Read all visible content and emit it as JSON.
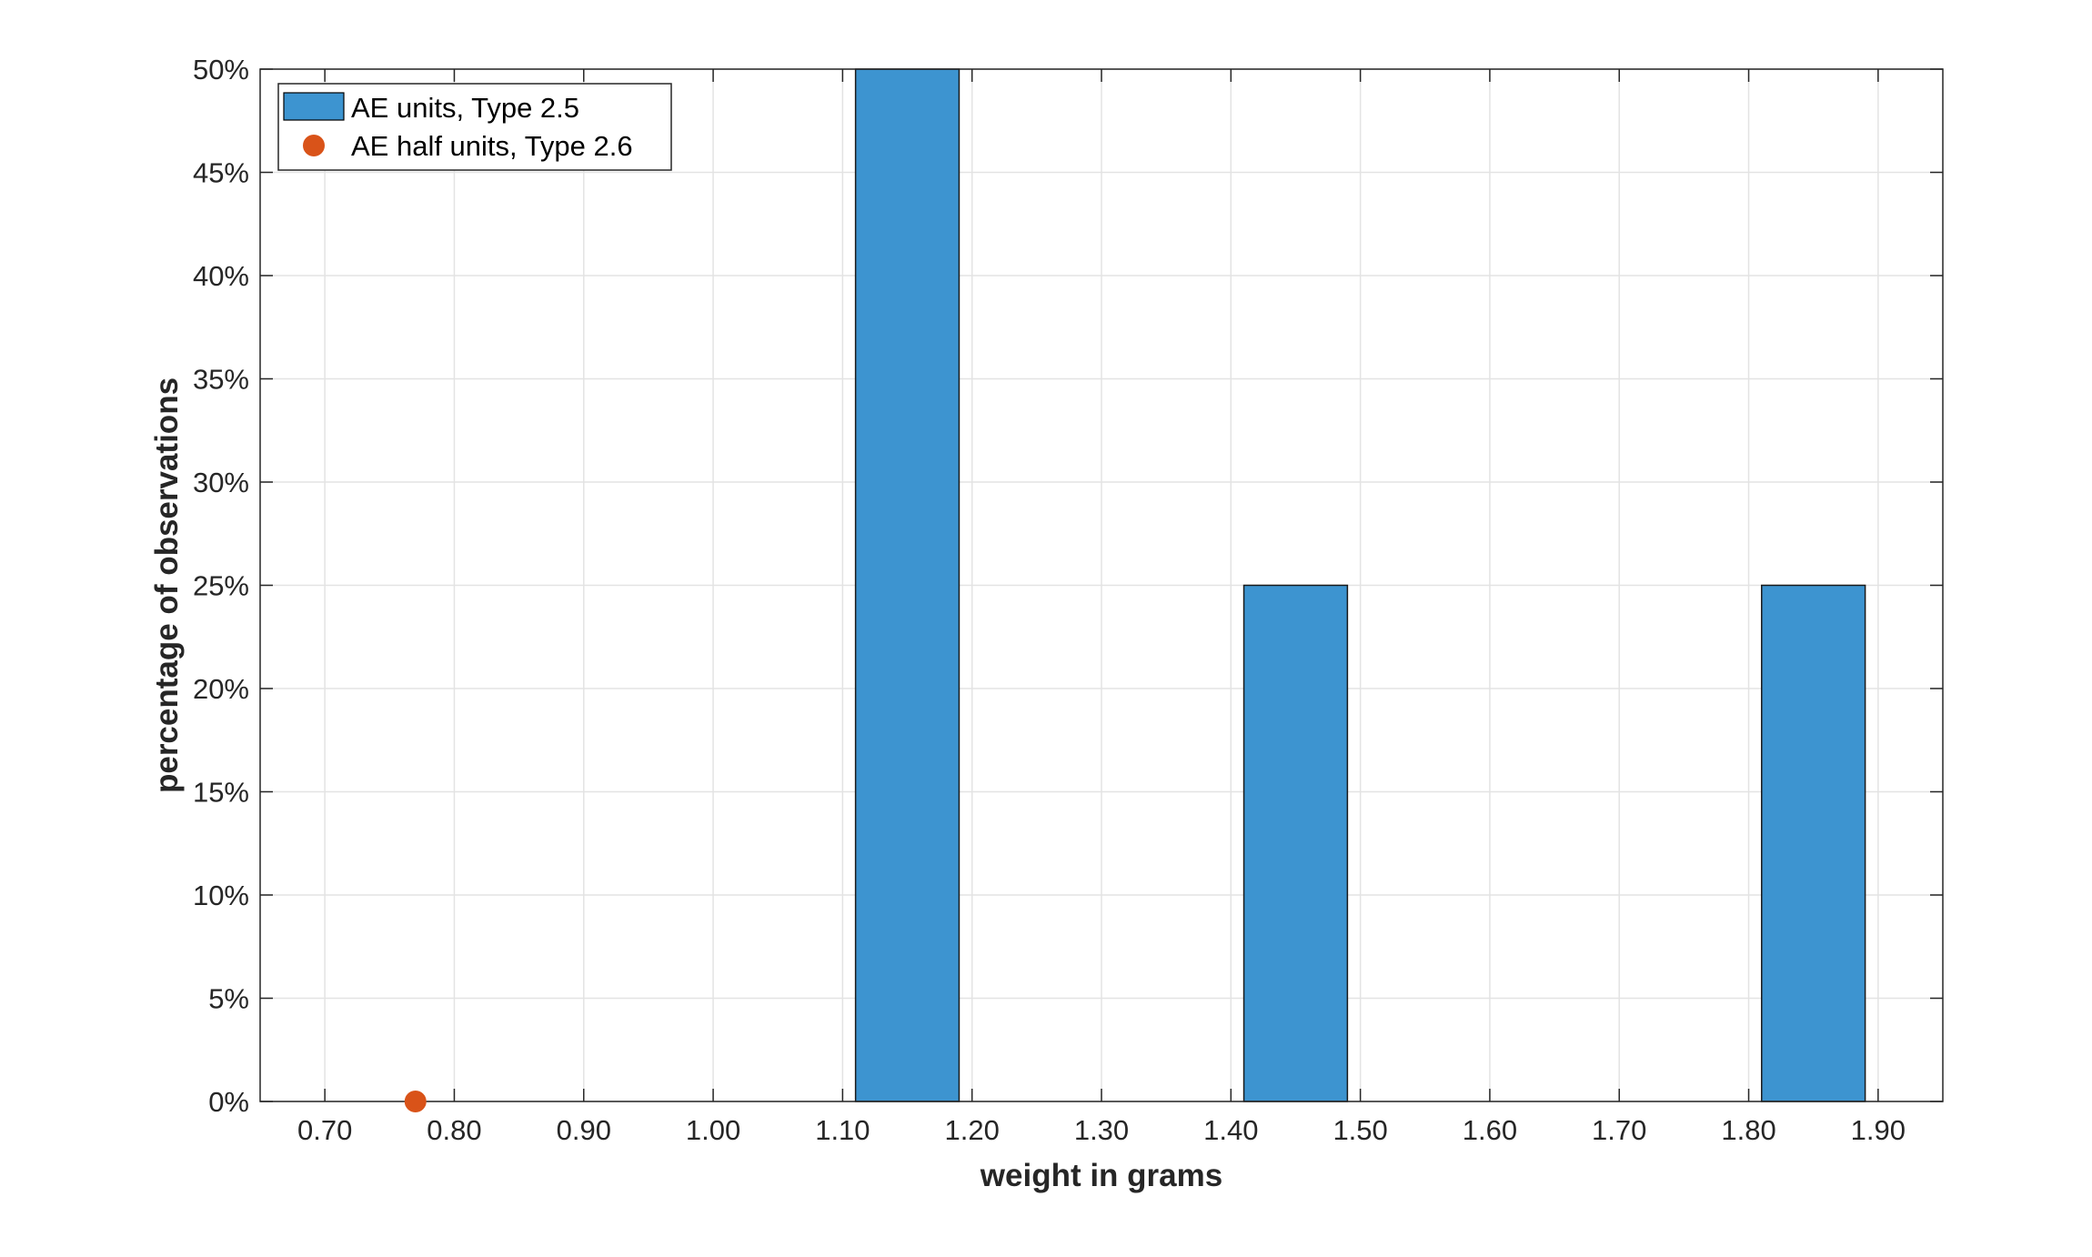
{
  "chart_data": {
    "type": "bar",
    "xlabel": "weight in grams",
    "ylabel": "percentage of observations",
    "xlim": [
      0.65,
      1.95
    ],
    "ylim": [
      0,
      50
    ],
    "xticks": [
      "0.70",
      "0.80",
      "0.90",
      "1.00",
      "1.10",
      "1.20",
      "1.30",
      "1.40",
      "1.50",
      "1.60",
      "1.70",
      "1.80",
      "1.90"
    ],
    "yticks": [
      "0%",
      "5%",
      "10%",
      "15%",
      "20%",
      "25%",
      "30%",
      "35%",
      "40%",
      "45%",
      "50%"
    ],
    "grid": true,
    "legend_position": "top-left",
    "series": [
      {
        "name": "AE units, Type 2.5",
        "kind": "histogram",
        "color": "#3d94d0",
        "bins": [
          {
            "x0": 1.11,
            "x1": 1.19,
            "value": 50
          },
          {
            "x0": 1.41,
            "x1": 1.49,
            "value": 25
          },
          {
            "x0": 1.81,
            "x1": 1.89,
            "value": 25
          }
        ]
      },
      {
        "name": "AE half units, Type 2.6",
        "kind": "scatter",
        "color": "#d95319",
        "points": [
          {
            "x": 0.77,
            "y": 0
          }
        ]
      }
    ]
  }
}
